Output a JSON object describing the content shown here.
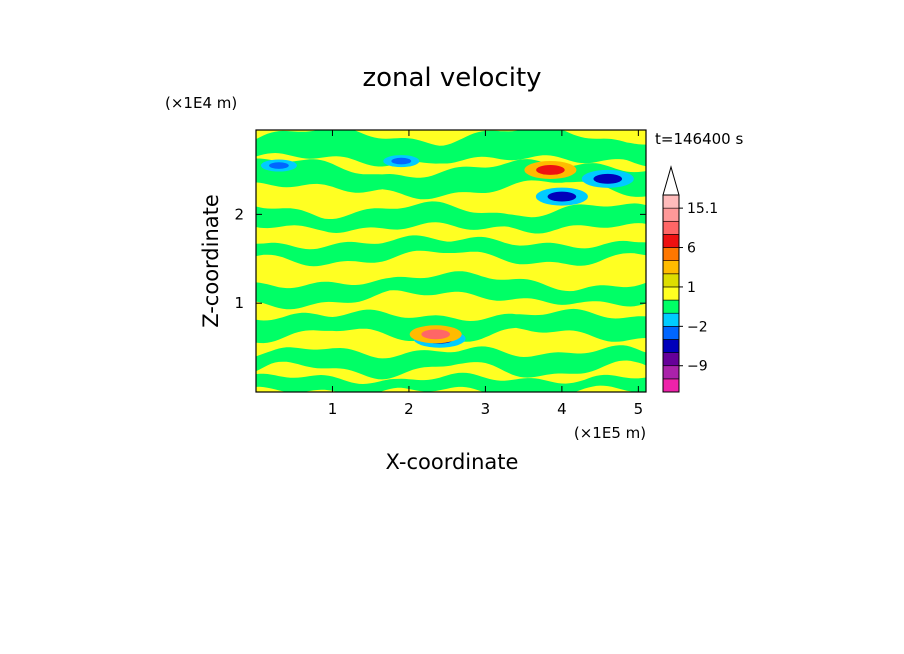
{
  "chart_data": {
    "type": "heatmap",
    "title": "zonal velocity",
    "xlabel": "X-coordinate",
    "ylabel": "Z-coordinate",
    "x_scale_label": "(×1E5 m)",
    "y_scale_label": "(×1E4 m)",
    "time_label": "t=146400 s",
    "xlim": [
      0,
      5.1
    ],
    "ylim": [
      0,
      2.95
    ],
    "x_ticks": [
      1,
      2,
      3,
      4,
      5
    ],
    "y_ticks": [
      1,
      2
    ],
    "colorbar": {
      "levels": [
        -15,
        -12,
        -9,
        -6,
        -3,
        -2,
        -1,
        0,
        1,
        2,
        3,
        6,
        9,
        12,
        15.1
      ],
      "labeled": [
        15.1,
        6,
        1,
        -2,
        -9
      ],
      "colors": [
        "#ee22aa",
        "#aa22aa",
        "#660099",
        "#0000bb",
        "#0066ff",
        "#00ccff",
        "#00ff66",
        "#ffff22",
        "#dddd00",
        "#ffbb00",
        "#ff7700",
        "#ee1111",
        "#ff6666",
        "#ff9999",
        "#ffbbbb"
      ],
      "extend": "max"
    },
    "field_features": [
      {
        "kind": "easterly_core",
        "x": 3.85,
        "z": 2.5,
        "value": 6
      },
      {
        "kind": "westerly_core",
        "x": 4.6,
        "z": 2.4,
        "value": -6
      },
      {
        "kind": "westerly_core",
        "x": 4.0,
        "z": 2.2,
        "value": -6
      },
      {
        "kind": "westerly_core",
        "x": 0.3,
        "z": 2.55,
        "value": -3
      },
      {
        "kind": "westerly_core",
        "x": 1.9,
        "z": 2.6,
        "value": -3
      },
      {
        "kind": "westerly_core",
        "x": 2.4,
        "z": 0.6,
        "value": -6
      },
      {
        "kind": "easterly_core",
        "x": 2.35,
        "z": 0.65,
        "value": 9
      }
    ],
    "colors": {
      "background": "#ffff22",
      "dominant_secondary": "#00ff66"
    }
  }
}
